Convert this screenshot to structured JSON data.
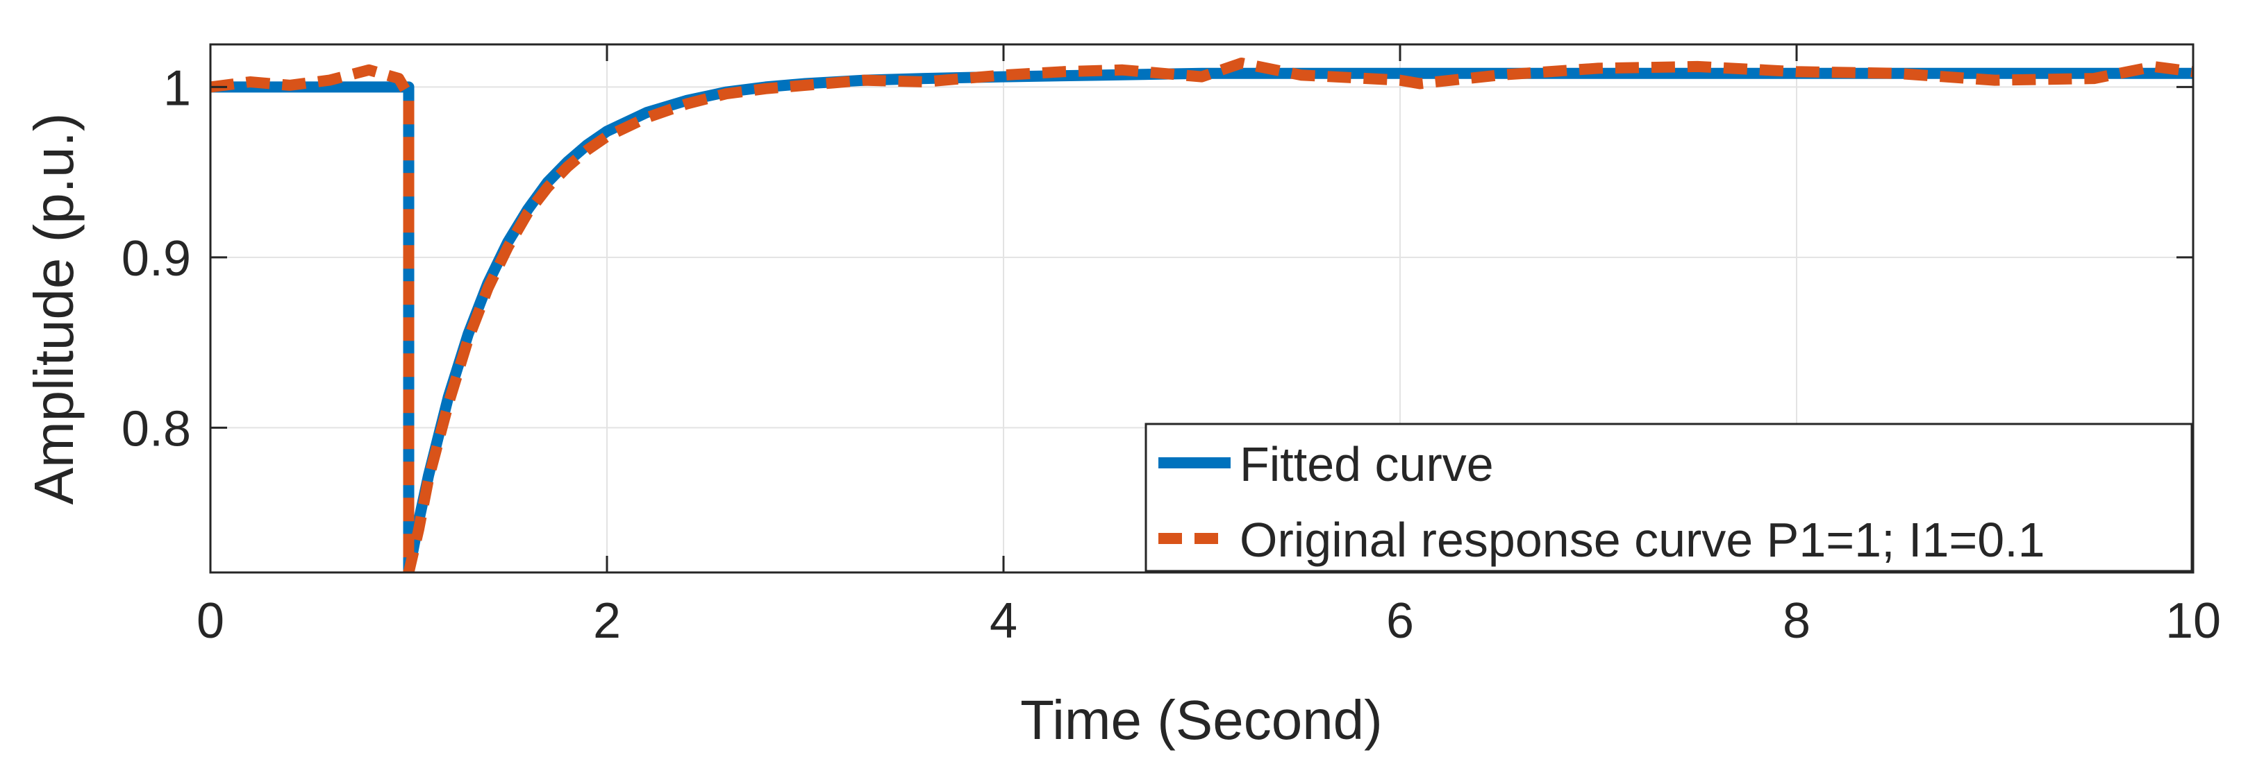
{
  "chart_data": {
    "type": "line",
    "title": "",
    "xlabel": "Time (Second)",
    "ylabel": "Amplitude (p.u.)",
    "xlim": [
      0,
      10
    ],
    "ylim": [
      0.715,
      1.025
    ],
    "xticks": [
      0,
      2,
      4,
      6,
      8,
      10
    ],
    "xtick_labels": [
      "0",
      "2",
      "4",
      "6",
      "8",
      "10"
    ],
    "yticks": [
      0.8,
      0.9,
      1.0
    ],
    "ytick_labels": [
      "0.8",
      "0.9",
      "1"
    ],
    "grid": true,
    "legend_position": "bottom-right",
    "series": [
      {
        "name": "Fitted curve",
        "color": "#0072BD",
        "style": "solid",
        "x": [
          0,
          1.0,
          1.0,
          1.0,
          1.05,
          1.1,
          1.2,
          1.3,
          1.4,
          1.5,
          1.6,
          1.7,
          1.8,
          1.9,
          2.0,
          2.2,
          2.4,
          2.6,
          2.8,
          3.0,
          3.3,
          3.6,
          4.0,
          4.5,
          5.0,
          6.0,
          7.0,
          8.0,
          9.0,
          10.0
        ],
        "y": [
          1.0,
          1.0,
          1.0,
          0.715,
          0.745,
          0.772,
          0.818,
          0.855,
          0.885,
          0.909,
          0.928,
          0.944,
          0.956,
          0.966,
          0.974,
          0.985,
          0.992,
          0.997,
          1.0,
          1.002,
          1.004,
          1.005,
          1.006,
          1.007,
          1.008,
          1.008,
          1.008,
          1.008,
          1.008,
          1.008
        ]
      },
      {
        "name": "Original response curve P1=1; I1=0.1",
        "color": "#D95319",
        "style": "dashed",
        "x": [
          0,
          0.2,
          0.4,
          0.6,
          0.8,
          0.95,
          1.0,
          1.0,
          1.05,
          1.1,
          1.2,
          1.3,
          1.4,
          1.5,
          1.6,
          1.7,
          1.8,
          1.9,
          2.0,
          2.2,
          2.4,
          2.6,
          2.8,
          3.0,
          3.3,
          3.6,
          4.0,
          4.3,
          4.6,
          5.0,
          5.2,
          5.5,
          6.0,
          6.1,
          6.5,
          7.0,
          7.5,
          8.0,
          8.5,
          9.0,
          9.5,
          9.8,
          10.0
        ],
        "y": [
          1.0,
          1.003,
          1.001,
          1.004,
          1.01,
          1.005,
          0.995,
          0.715,
          0.74,
          0.77,
          0.814,
          0.852,
          0.882,
          0.906,
          0.926,
          0.941,
          0.953,
          0.963,
          0.971,
          0.982,
          0.99,
          0.996,
          0.999,
          1.001,
          1.004,
          1.003,
          1.007,
          1.009,
          1.01,
          1.006,
          1.014,
          1.007,
          1.004,
          1.002,
          1.007,
          1.011,
          1.012,
          1.009,
          1.008,
          1.004,
          1.005,
          1.012,
          1.009
        ]
      }
    ]
  }
}
